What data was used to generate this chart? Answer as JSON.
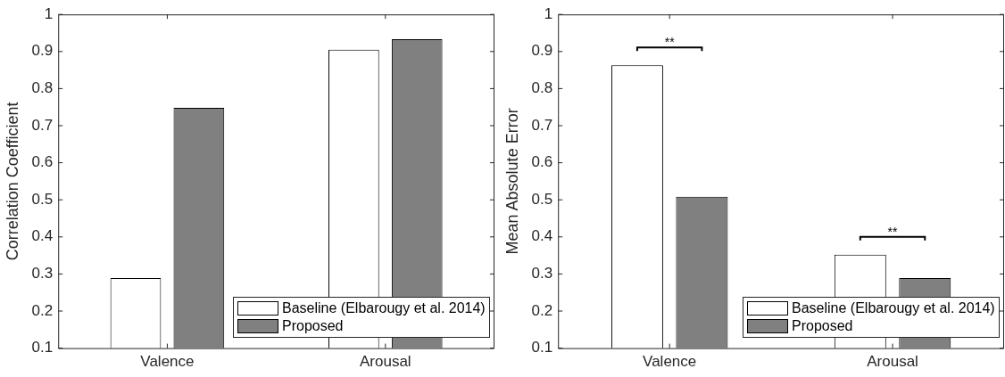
{
  "chart_data": [
    {
      "type": "bar",
      "ylabel": "Correlation Coefficient",
      "categories": [
        "Valence",
        "Arousal"
      ],
      "series": [
        {
          "name": "Baseline (Elbarougy et al. 2014)",
          "color": "#ffffff",
          "values": [
            0.289,
            0.905
          ]
        },
        {
          "name": "Proposed",
          "color": "#808080",
          "values": [
            0.748,
            0.933
          ]
        }
      ],
      "ylim": [
        0.1,
        1
      ],
      "yticks": [
        0.1,
        0.2,
        0.3,
        0.4,
        0.5,
        0.6,
        0.7,
        0.8,
        0.9,
        1
      ],
      "grid": false,
      "legend": "bottom right"
    },
    {
      "type": "bar",
      "ylabel": "Mean Absolute Error",
      "categories": [
        "Valence",
        "Arousal"
      ],
      "series": [
        {
          "name": "Baseline (Elbarougy et al. 2014)",
          "color": "#ffffff",
          "values": [
            0.863,
            0.352
          ]
        },
        {
          "name": "Proposed",
          "color": "#808080",
          "values": [
            0.508,
            0.289
          ]
        }
      ],
      "ylim": [
        0.1,
        1
      ],
      "yticks": [
        0.1,
        0.2,
        0.3,
        0.4,
        0.5,
        0.6,
        0.7,
        0.8,
        0.9,
        1
      ],
      "grid": false,
      "legend": "bottom right",
      "annotations": [
        "**",
        "**"
      ]
    }
  ]
}
